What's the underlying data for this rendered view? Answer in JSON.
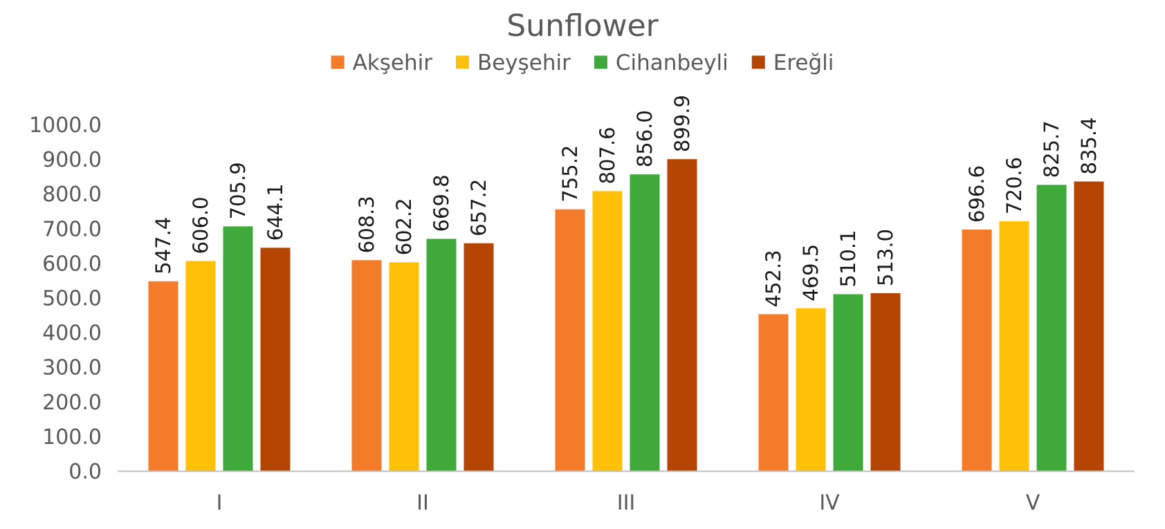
{
  "colors": {
    "text": "#595959",
    "axis": "#bfbfbf"
  },
  "chart_data": {
    "type": "bar",
    "title": "Sunflower",
    "xlabel": "",
    "ylabel": "",
    "categories": [
      "I",
      "II",
      "III",
      "IV",
      "V"
    ],
    "ylim": [
      0,
      1000
    ],
    "yticks": [
      "0.0",
      "100.0",
      "200.0",
      "300.0",
      "400.0",
      "500.0",
      "600.0",
      "700.0",
      "800.0",
      "900.0",
      "1000.0"
    ],
    "grid": false,
    "legend_position": "top",
    "series": [
      {
        "name": "Akşehir",
        "color": "#f47b2a",
        "values": [
          547.4,
          608.3,
          755.2,
          452.3,
          696.6
        ],
        "labels": [
          "547.4",
          "608.3",
          "755.2",
          "452.3",
          "696.6"
        ]
      },
      {
        "name": "Beyşehir",
        "color": "#fec107",
        "values": [
          606.0,
          602.2,
          807.6,
          469.5,
          720.6
        ],
        "labels": [
          "606.0",
          "602.2",
          "807.6",
          "469.5",
          "720.6"
        ]
      },
      {
        "name": "Cihanbeyli",
        "color": "#3faa3b",
        "values": [
          705.9,
          669.8,
          856.0,
          510.1,
          825.7
        ],
        "labels": [
          "705.9",
          "669.8",
          "856.0",
          "510.1",
          "825.7"
        ]
      },
      {
        "name": "Ereğli",
        "color": "#b54503",
        "values": [
          644.1,
          657.2,
          899.9,
          513.0,
          835.4
        ],
        "labels": [
          "644.1",
          "657.2",
          "899.9",
          "513.0",
          "835.4"
        ]
      }
    ]
  }
}
